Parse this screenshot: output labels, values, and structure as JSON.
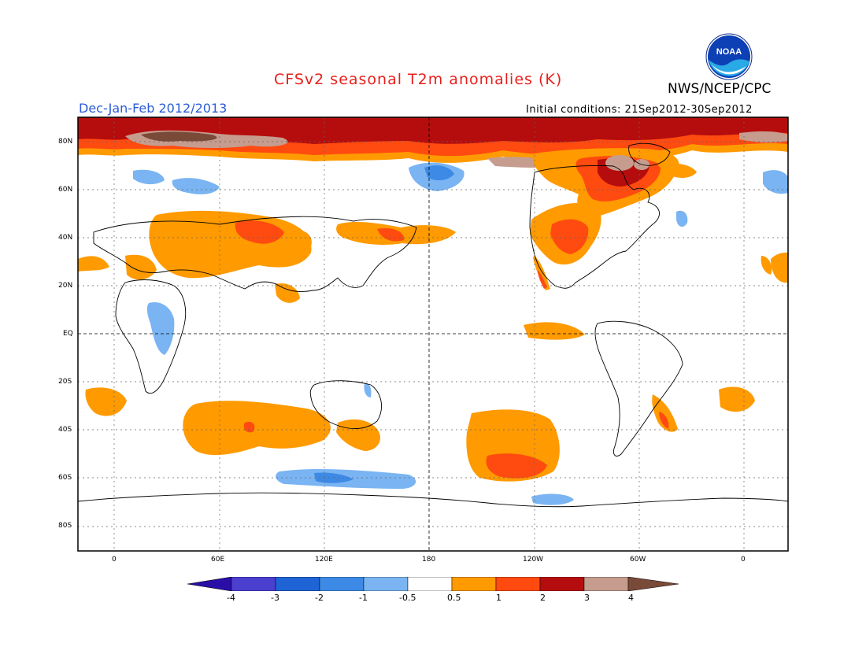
{
  "title": "CFSv2 seasonal T2m anomalies (K)",
  "agency": "NWS/NCEP/CPC",
  "logo_text": "NOAA",
  "season": "Dec-Jan-Feb 2012/2013",
  "initial_conditions": "Initial conditions: 21Sep2012-30Sep2012",
  "lat_labels": [
    "80N",
    "60N",
    "40N",
    "20N",
    "EQ",
    "20S",
    "40S",
    "60S",
    "80S"
  ],
  "lon_labels": [
    "0",
    "60E",
    "120E",
    "180",
    "120W",
    "60W",
    "0"
  ],
  "colorbar": {
    "labels": [
      "-4",
      "-3",
      "-2",
      "-1",
      "-0.5",
      "0.5",
      "1",
      "2",
      "3",
      "4"
    ],
    "colors": [
      "#2a0fa6",
      "#4b3fd0",
      "#1f64d6",
      "#3d8ae6",
      "#7ab4f2",
      "#ffffff",
      "#ff9a00",
      "#ff4a10",
      "#b50d0d",
      "#c69c8e",
      "#7a4a38"
    ]
  },
  "palette": {
    "orange": "#ff9a00",
    "red_orange": "#ff4a10",
    "dark_red": "#b50d0d",
    "tan": "#c69c8e",
    "brown": "#7a4a38",
    "light_blue": "#7ab4f2",
    "blue": "#3d8ae6"
  }
}
